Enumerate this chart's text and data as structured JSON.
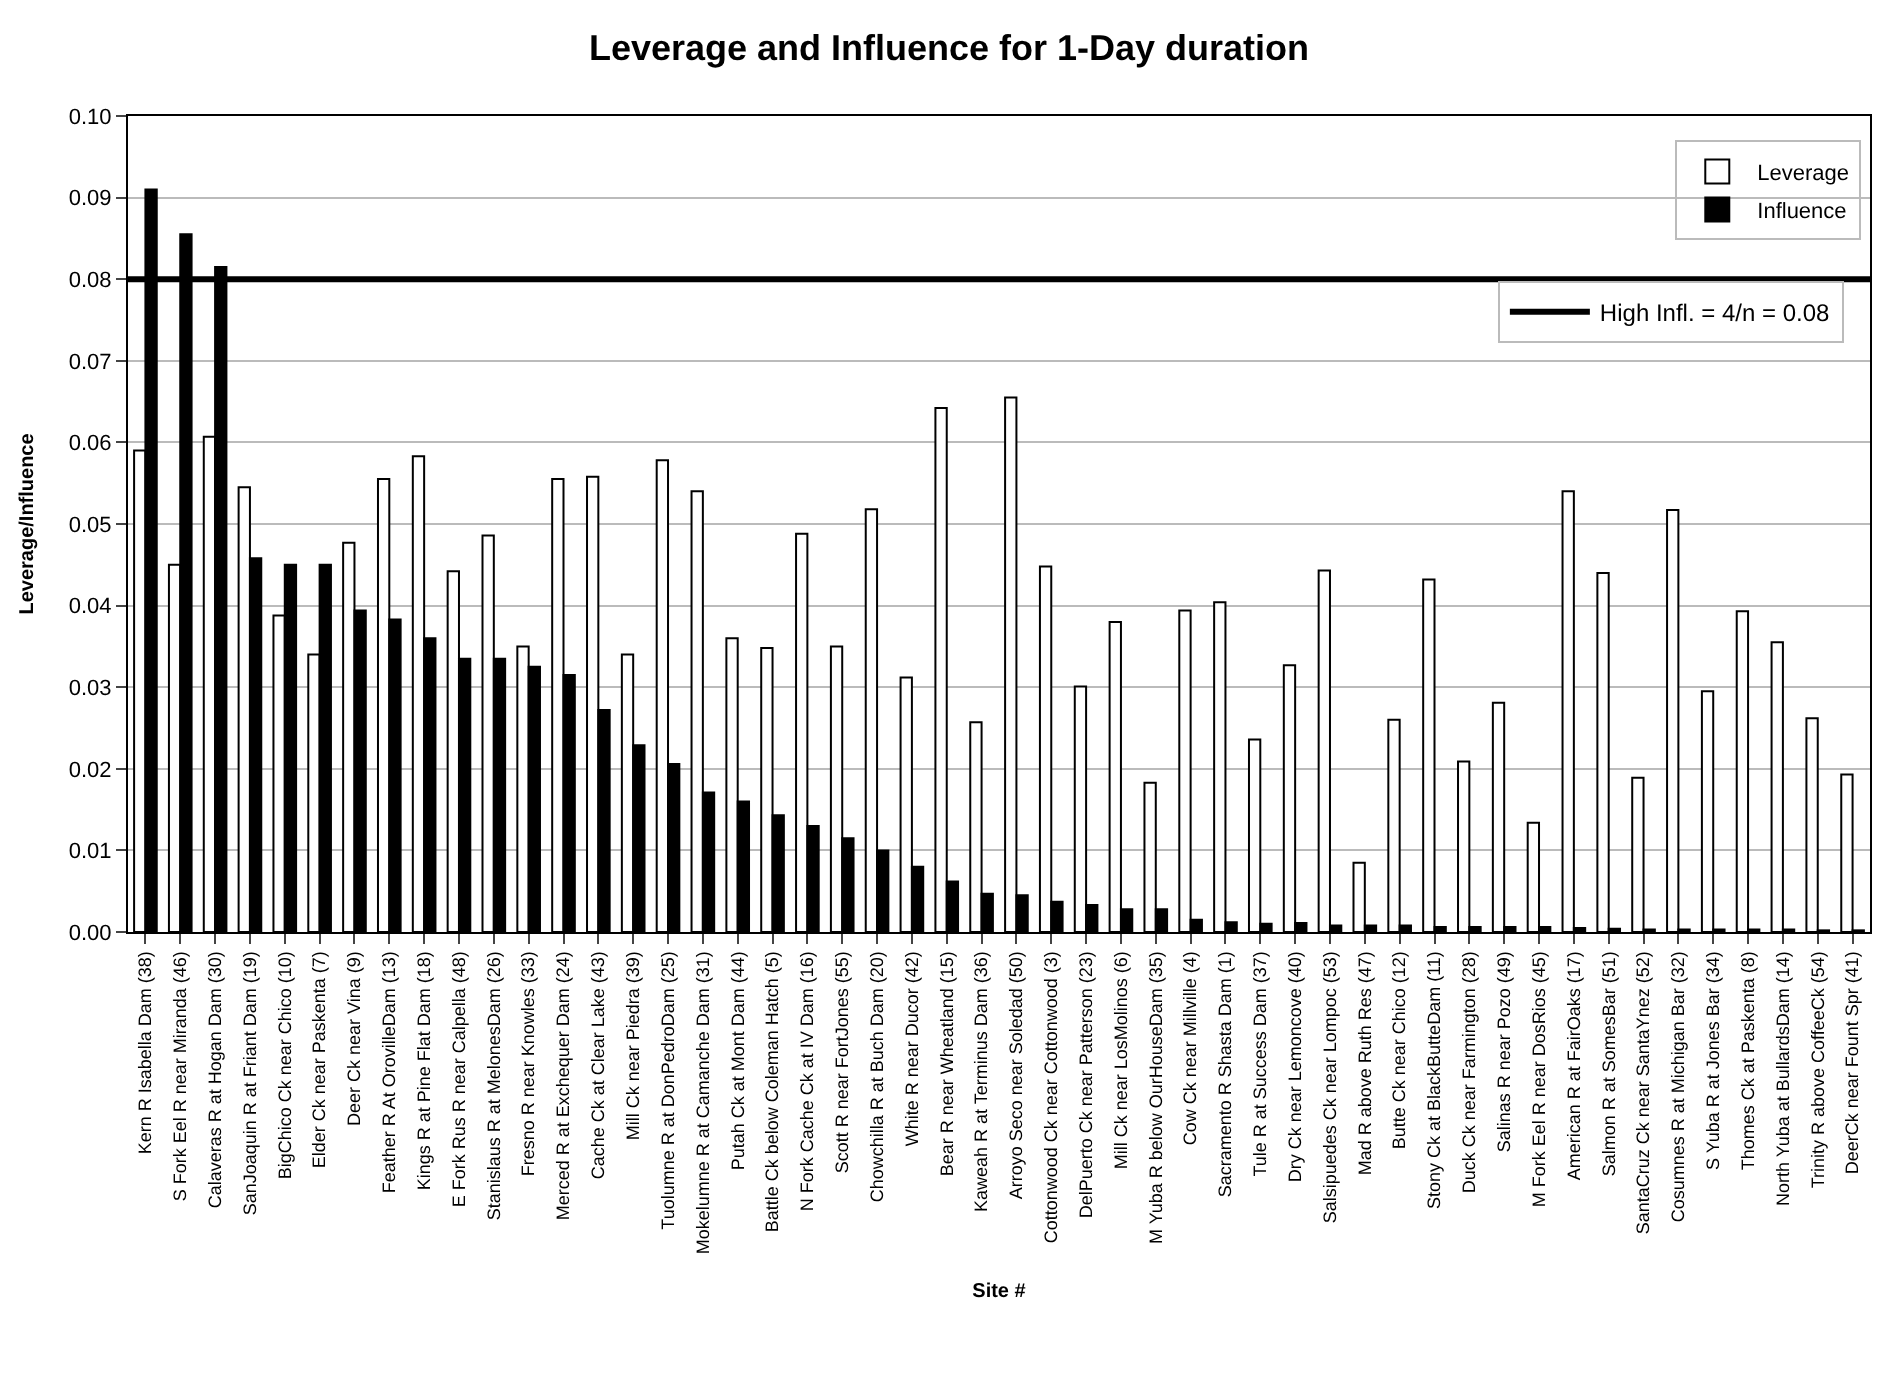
{
  "chart_data": {
    "type": "bar",
    "title": "Leverage and Influence for 1-Day duration",
    "xlabel": "Site #",
    "ylabel": "Leverage/Influence",
    "categories": [
      "Kern R Isabella Dam (38)",
      "S Fork Eel R near Miranda (46)",
      "Calaveras R at Hogan Dam (30)",
      "SanJoaquin R at Friant Dam (19)",
      "BigChico Ck near Chico (10)",
      "Elder Ck near Paskenta (7)",
      "Deer Ck near Vina (9)",
      "Feather R At OrovilleDam (13)",
      "Kings R at Pine Flat Dam (18)",
      "E Fork Rus R near Calpella (48)",
      "Stanislaus R at MelonesDam (26)",
      "Fresno R near Knowles (33)",
      "Merced R at Exchequer Dam (24)",
      "Cache Ck at Clear Lake (43)",
      "Mill Ck near Piedra (39)",
      "Tuolumne R at DonPedroDam (25)",
      "Mokelumne R at Camanche Dam (31)",
      "Putah Ck at Mont Dam (44)",
      "Battle Ck below Coleman Hatch (5)",
      "N Fork Cache Ck at IV Dam (16)",
      "Scott R near FortJones (55)",
      "Chowchilla R at Buch Dam (20)",
      "White R near Ducor (42)",
      "Bear R near Wheatland (15)",
      "Kaweah R at Terminus Dam (36)",
      "Arroyo Seco near Soledad (50)",
      "Cottonwood Ck near Cottonwood (3)",
      "DelPuerto Ck near Patterson (23)",
      "Mill Ck near LosMolinos (6)",
      "M Yuba R below OurHouseDam (35)",
      "Cow Ck near Millville (4)",
      "Sacramento R Shasta Dam (1)",
      "Tule R at Success Dam (37)",
      "Dry Ck near Lemoncove (40)",
      "Salsipuedes Ck near Lompoc (53)",
      "Mad R above Ruth Res (47)",
      "Butte Ck near Chico (12)",
      "Stony Ck at BlackButteDam (11)",
      "Duck Ck near Farmington (28)",
      "Salinas R near Pozo (49)",
      "M Fork Eel R near DosRios (45)",
      "American R at FairOaks (17)",
      "Salmon R at SomesBar (51)",
      "SantaCruz Ck near SantaYnez (52)",
      "Cosumnes R at Michigan Bar (32)",
      "S Yuba R at Jones Bar (34)",
      "Thomes Ck at Paskenta (8)",
      "North Yuba at BullardsDam (14)",
      "Trinity R above CoffeeCk (54)",
      "DeerCk near Fount Spr (41)"
    ],
    "series": [
      {
        "name": "Leverage",
        "color": "#ffffff",
        "values": [
          0.059,
          0.045,
          0.0607,
          0.0545,
          0.0388,
          0.034,
          0.0477,
          0.0555,
          0.0583,
          0.0442,
          0.0486,
          0.035,
          0.0555,
          0.0558,
          0.034,
          0.0578,
          0.054,
          0.036,
          0.0348,
          0.0488,
          0.035,
          0.0518,
          0.0312,
          0.0642,
          0.0257,
          0.0655,
          0.0448,
          0.0301,
          0.038,
          0.0183,
          0.0394,
          0.0404,
          0.0236,
          0.0327,
          0.0443,
          0.0085,
          0.026,
          0.0432,
          0.0209,
          0.0281,
          0.0134,
          0.054,
          0.044,
          0.0189,
          0.0517,
          0.0295,
          0.0393,
          0.0355,
          0.0262,
          0.0193
        ]
      },
      {
        "name": "Influence",
        "color": "#000000",
        "values": [
          0.091,
          0.0855,
          0.0815,
          0.0458,
          0.045,
          0.045,
          0.0394,
          0.0383,
          0.036,
          0.0335,
          0.0335,
          0.0325,
          0.0315,
          0.0272,
          0.0229,
          0.0206,
          0.0171,
          0.016,
          0.0143,
          0.013,
          0.0115,
          0.01,
          0.008,
          0.0062,
          0.0047,
          0.0045,
          0.0037,
          0.0033,
          0.0028,
          0.0028,
          0.0015,
          0.0012,
          0.001,
          0.0011,
          0.0008,
          0.0008,
          0.0008,
          0.0006,
          0.0006,
          0.0006,
          0.0006,
          0.0005,
          0.0004,
          0.0003,
          0.0003,
          0.0003,
          0.0003,
          0.0003,
          0.0002,
          0.0002
        ]
      }
    ],
    "ylim": [
      0,
      0.1
    ],
    "yticks": [
      {
        "value": 0,
        "label": "0.00"
      },
      {
        "value": 0.01,
        "label": "0.01"
      },
      {
        "value": 0.02,
        "label": "0.02"
      },
      {
        "value": 0.03,
        "label": "0.03"
      },
      {
        "value": 0.04,
        "label": "0.04"
      },
      {
        "value": 0.05,
        "label": "0.05"
      },
      {
        "value": 0.06,
        "label": "0.06"
      },
      {
        "value": 0.07,
        "label": "0.07"
      },
      {
        "value": 0.08,
        "label": "0.08"
      },
      {
        "value": 0.09,
        "label": "0.09"
      },
      {
        "value": 0.1,
        "label": "0.10"
      }
    ],
    "ref_lines": [
      {
        "axis": "y",
        "value": 0.08,
        "label": "High Infl. = 4/n = 0.08",
        "color": "#000000",
        "line_style": "solid"
      }
    ],
    "grid": "y",
    "legend": "top right"
  }
}
